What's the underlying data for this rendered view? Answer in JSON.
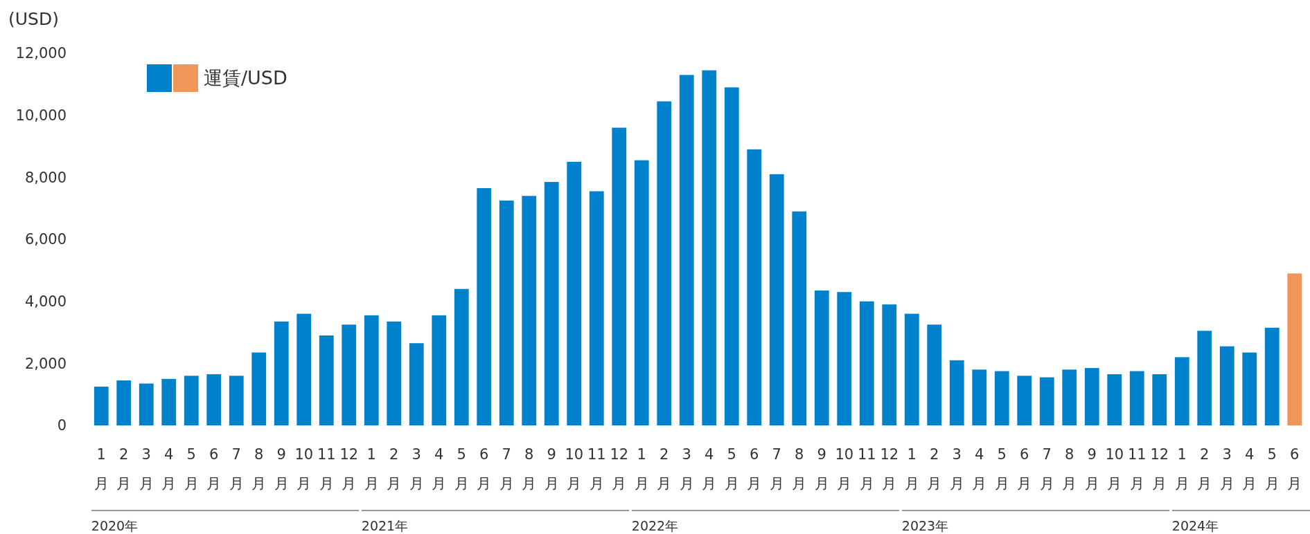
{
  "chart_data": {
    "type": "bar",
    "ylabel": "(USD)",
    "categories": [
      "1月",
      "2月",
      "3月",
      "4月",
      "5月",
      "6月",
      "7月",
      "8月",
      "9月",
      "10月",
      "11月",
      "12月",
      "1月",
      "2月",
      "3月",
      "4月",
      "5月",
      "6月",
      "7月",
      "8月",
      "9月",
      "10月",
      "11月",
      "12月",
      "1月",
      "2月",
      "3月",
      "4月",
      "5月",
      "6月",
      "7月",
      "8月",
      "9月",
      "10月",
      "11月",
      "12月",
      "1月",
      "2月",
      "3月",
      "4月",
      "5月",
      "6月",
      "7月",
      "8月",
      "9月",
      "10月",
      "11月",
      "12月",
      "1月",
      "2月",
      "3月",
      "4月",
      "5月",
      "6月"
    ],
    "series": [
      {
        "name": "運賃/USD",
        "color": "#0081cc",
        "colors": [
          "#0081cc",
          "#0081cc",
          "#0081cc",
          "#0081cc",
          "#0081cc",
          "#0081cc",
          "#0081cc",
          "#0081cc",
          "#0081cc",
          "#0081cc",
          "#0081cc",
          "#0081cc",
          "#0081cc",
          "#0081cc",
          "#0081cc",
          "#0081cc",
          "#0081cc",
          "#0081cc",
          "#0081cc",
          "#0081cc",
          "#0081cc",
          "#0081cc",
          "#0081cc",
          "#0081cc",
          "#0081cc",
          "#0081cc",
          "#0081cc",
          "#0081cc",
          "#0081cc",
          "#0081cc",
          "#0081cc",
          "#0081cc",
          "#0081cc",
          "#0081cc",
          "#0081cc",
          "#0081cc",
          "#0081cc",
          "#0081cc",
          "#0081cc",
          "#0081cc",
          "#0081cc",
          "#0081cc",
          "#0081cc",
          "#0081cc",
          "#0081cc",
          "#0081cc",
          "#0081cc",
          "#0081cc",
          "#0081cc",
          "#0081cc",
          "#0081cc",
          "#0081cc",
          "#0081cc",
          "#f0965a"
        ],
        "values": [
          1250,
          1450,
          1350,
          1500,
          1600,
          1650,
          1600,
          2350,
          3350,
          3600,
          2900,
          3250,
          3550,
          3350,
          2650,
          3550,
          4400,
          7650,
          7250,
          7400,
          7850,
          8500,
          7550,
          9600,
          8550,
          10450,
          11300,
          11450,
          10900,
          8900,
          8100,
          6900,
          4350,
          4300,
          4000,
          3900,
          3600,
          3250,
          2100,
          1800,
          1750,
          1600,
          1550,
          1800,
          1850,
          1650,
          1750,
          1650,
          2200,
          3050,
          2550,
          2350,
          3150,
          4900
        ]
      }
    ],
    "annotations": [
      "2020年",
      "2021年",
      "2022年",
      "2023年",
      "2024年"
    ],
    "ylim": [
      0,
      12000
    ],
    "yticks": [
      {
        "value": 0,
        "label": "0"
      },
      {
        "value": 2000,
        "label": "2,000"
      },
      {
        "value": 4000,
        "label": "4,000"
      },
      {
        "value": 6000,
        "label": "6,000"
      },
      {
        "value": 8000,
        "label": "8,000"
      },
      {
        "value": 10000,
        "label": "10,000"
      },
      {
        "value": 12000,
        "label": "12,000"
      }
    ],
    "grid": false,
    "legend": "top left"
  }
}
